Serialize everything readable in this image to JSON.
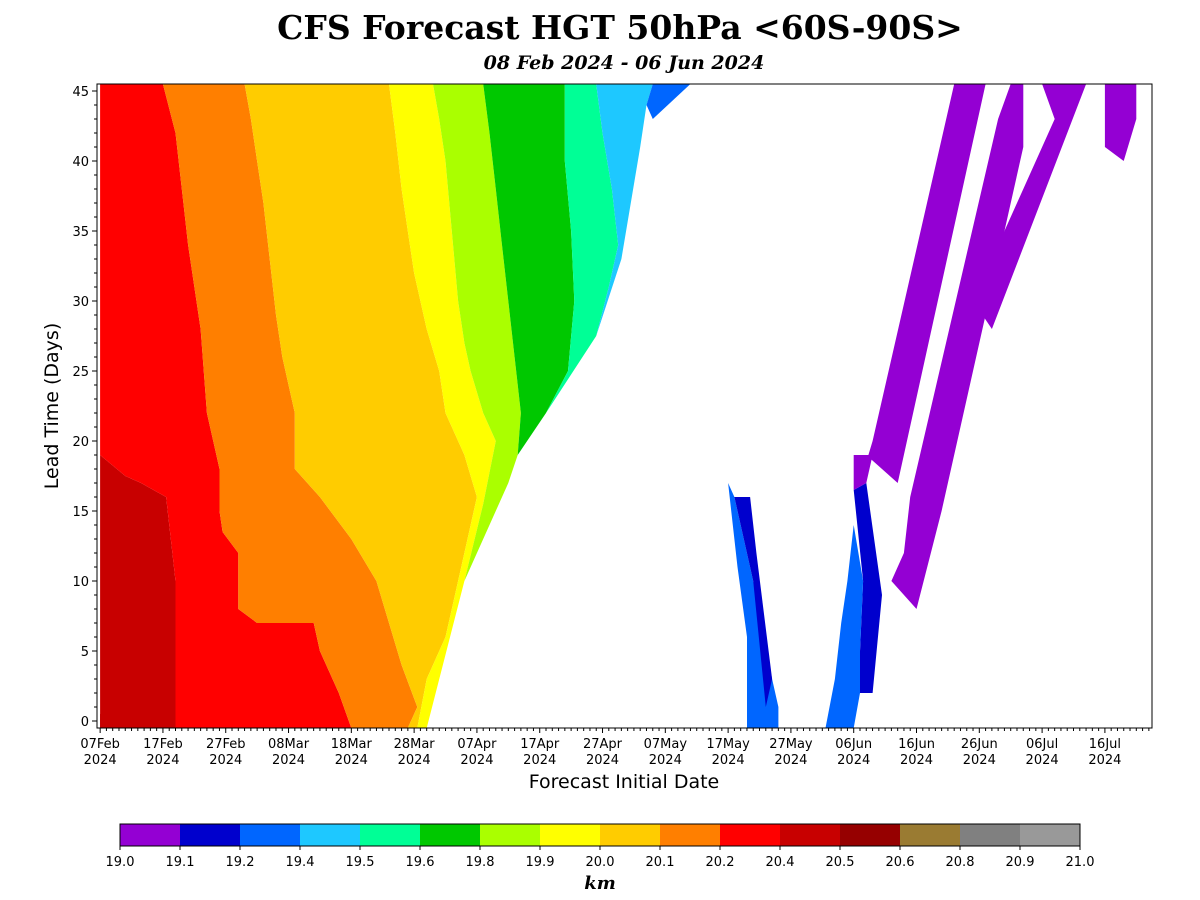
{
  "chart_data": {
    "type": "heatmap",
    "title": "CFS Forecast HGT 50hPa <60S-90S>",
    "subtitle": "08 Feb 2024 - 06 Jun 2024",
    "xlabel": "Forecast Initial Date",
    "ylabel": "Lead Time (Days)",
    "x_start": "2024-02-07",
    "x_end": "2024-07-24",
    "xlim": [
      -0.5,
      167.5
    ],
    "ylim": [
      -0.5,
      45.5
    ],
    "x_ticks": [
      {
        "day": 0,
        "label": "07Feb",
        "year": "2024"
      },
      {
        "day": 10,
        "label": "17Feb",
        "year": "2024"
      },
      {
        "day": 20,
        "label": "27Feb",
        "year": "2024"
      },
      {
        "day": 30,
        "label": "08Mar",
        "year": "2024"
      },
      {
        "day": 40,
        "label": "18Mar",
        "year": "2024"
      },
      {
        "day": 50,
        "label": "28Mar",
        "year": "2024"
      },
      {
        "day": 60,
        "label": "07Apr",
        "year": "2024"
      },
      {
        "day": 70,
        "label": "17Apr",
        "year": "2024"
      },
      {
        "day": 80,
        "label": "27Apr",
        "year": "2024"
      },
      {
        "day": 90,
        "label": "07May",
        "year": "2024"
      },
      {
        "day": 100,
        "label": "17May",
        "year": "2024"
      },
      {
        "day": 110,
        "label": "27May",
        "year": "2024"
      },
      {
        "day": 120,
        "label": "06Jun",
        "year": "2024"
      },
      {
        "day": 130,
        "label": "16Jun",
        "year": "2024"
      },
      {
        "day": 140,
        "label": "26Jun",
        "year": "2024"
      },
      {
        "day": 150,
        "label": "06Jul",
        "year": "2024"
      },
      {
        "day": 160,
        "label": "16Jul",
        "year": "2024"
      }
    ],
    "y_ticks": [
      0,
      5,
      10,
      15,
      20,
      25,
      30,
      35,
      40,
      45
    ],
    "colorbar": {
      "unit": "km",
      "tick_labels": [
        "19.0",
        "19.1",
        "19.2",
        "19.4",
        "19.5",
        "19.6",
        "19.8",
        "19.9",
        "20.0",
        "20.1",
        "20.2",
        "20.4",
        "20.5",
        "20.6",
        "20.8",
        "20.9",
        "21.0"
      ],
      "colors": [
        "#9400d3",
        "#0000cd",
        "#0066ff",
        "#1ec8ff",
        "#00ff96",
        "#00c800",
        "#aaff00",
        "#ffff00",
        "#ffcc00",
        "#ff7f00",
        "#ff0000",
        "#c80000",
        "#960000",
        "#9a7b32",
        "#808080",
        "#999999"
      ]
    },
    "regions": [
      {
        "value": 20.55,
        "poly": [
          [
            0,
            -0.5
          ],
          [
            3,
            -0.5
          ],
          [
            3,
            0.5
          ],
          [
            0,
            0.5
          ]
        ]
      },
      {
        "value": 20.45,
        "poly": [
          [
            0,
            -0.5
          ],
          [
            12,
            -0.5
          ],
          [
            12,
            10
          ],
          [
            10.5,
            16
          ],
          [
            6.5,
            17
          ],
          [
            4,
            17.5
          ],
          [
            0,
            19
          ]
        ]
      },
      {
        "value": 20.3,
        "poly": [
          [
            0,
            19
          ],
          [
            4,
            17.5
          ],
          [
            6.5,
            17
          ],
          [
            10.5,
            16
          ],
          [
            12,
            10
          ],
          [
            12,
            -0.5
          ],
          [
            40,
            -0.5
          ],
          [
            38,
            2
          ],
          [
            36,
            4
          ],
          [
            35,
            5
          ],
          [
            34,
            7
          ],
          [
            31,
            7
          ],
          [
            25,
            7
          ],
          [
            22,
            8
          ],
          [
            22,
            12
          ],
          [
            19.5,
            13.5
          ],
          [
            19,
            15
          ],
          [
            19,
            18
          ],
          [
            17,
            22
          ],
          [
            16,
            28
          ],
          [
            14,
            34
          ],
          [
            12,
            42
          ],
          [
            10,
            45.5
          ],
          [
            0,
            45.5
          ]
        ]
      },
      {
        "value": 20.15,
        "poly": [
          [
            40,
            -0.5
          ],
          [
            49,
            -0.5
          ],
          [
            50.5,
            1
          ],
          [
            48,
            4
          ],
          [
            46,
            7
          ],
          [
            44,
            10
          ],
          [
            40,
            13
          ],
          [
            35,
            16
          ],
          [
            31,
            18
          ],
          [
            31,
            22
          ],
          [
            29,
            26
          ],
          [
            28,
            29
          ],
          [
            27,
            33
          ],
          [
            26,
            37
          ],
          [
            25,
            40
          ],
          [
            24,
            43
          ],
          [
            23,
            45.5
          ],
          [
            10,
            45.5
          ],
          [
            12,
            42
          ],
          [
            14,
            34
          ],
          [
            16,
            28
          ],
          [
            17,
            22
          ],
          [
            19,
            18
          ],
          [
            19,
            15
          ],
          [
            19.5,
            13.5
          ],
          [
            22,
            12
          ],
          [
            22,
            8
          ],
          [
            25,
            7
          ],
          [
            31,
            7
          ],
          [
            34,
            7
          ],
          [
            35,
            5
          ],
          [
            36,
            4
          ],
          [
            38,
            2
          ]
        ]
      },
      {
        "value": 20.05,
        "poly": [
          [
            49,
            -0.5
          ],
          [
            50.5,
            -0.5
          ],
          [
            52,
            3
          ],
          [
            55,
            6
          ],
          [
            57,
            10
          ],
          [
            58.5,
            13
          ],
          [
            60,
            16
          ],
          [
            58,
            19
          ],
          [
            55,
            22
          ],
          [
            54,
            25
          ],
          [
            52,
            28
          ],
          [
            50,
            32
          ],
          [
            49,
            35
          ],
          [
            48,
            38
          ],
          [
            47,
            42
          ],
          [
            46,
            45.5
          ],
          [
            23,
            45.5
          ],
          [
            24,
            43
          ],
          [
            25,
            40
          ],
          [
            26,
            37
          ],
          [
            27,
            33
          ],
          [
            28,
            29
          ],
          [
            29,
            26
          ],
          [
            31,
            22
          ],
          [
            31,
            18
          ],
          [
            35,
            16
          ],
          [
            40,
            13
          ],
          [
            44,
            10
          ],
          [
            46,
            7
          ],
          [
            48,
            4
          ],
          [
            50.5,
            1
          ]
        ]
      },
      {
        "value": 19.95,
        "poly": [
          [
            50.5,
            -0.5
          ],
          [
            52,
            -0.5
          ],
          [
            58,
            10
          ],
          [
            61,
            15.5
          ],
          [
            63,
            20
          ],
          [
            61,
            22
          ],
          [
            59,
            25
          ],
          [
            58,
            27
          ],
          [
            57,
            30
          ],
          [
            56,
            35
          ],
          [
            55,
            40
          ],
          [
            54,
            43
          ],
          [
            53,
            45.5
          ],
          [
            46,
            45.5
          ],
          [
            47,
            42
          ],
          [
            48,
            38
          ],
          [
            49,
            35
          ],
          [
            50,
            32
          ],
          [
            52,
            28
          ],
          [
            54,
            25
          ],
          [
            55,
            22
          ],
          [
            58,
            19
          ],
          [
            60,
            16
          ],
          [
            58.5,
            13
          ],
          [
            57,
            10
          ],
          [
            55,
            6
          ],
          [
            52,
            3
          ]
        ]
      },
      {
        "value": 19.85,
        "poly": [
          [
            58,
            10
          ],
          [
            61,
            15.5
          ],
          [
            63,
            20
          ],
          [
            61,
            22
          ],
          [
            59,
            25
          ],
          [
            58,
            27
          ],
          [
            57,
            30
          ],
          [
            56,
            35
          ],
          [
            55,
            40
          ],
          [
            54,
            43
          ],
          [
            53,
            45.5
          ],
          [
            61,
            45.5
          ],
          [
            62,
            42
          ],
          [
            63,
            38
          ],
          [
            64,
            34
          ],
          [
            65,
            30
          ],
          [
            66,
            26
          ],
          [
            67,
            22
          ],
          [
            66.5,
            19
          ],
          [
            65,
            17
          ]
        ]
      },
      {
        "value": 19.7,
        "poly": [
          [
            66.5,
            19
          ],
          [
            67,
            22
          ],
          [
            66,
            26
          ],
          [
            65,
            30
          ],
          [
            64,
            34
          ],
          [
            63,
            38
          ],
          [
            62,
            42
          ],
          [
            61,
            45.5
          ],
          [
            74,
            45.5
          ],
          [
            74,
            40
          ],
          [
            75,
            35
          ],
          [
            75.5,
            30
          ],
          [
            74.5,
            25
          ],
          [
            71,
            22
          ]
        ]
      },
      {
        "value": 19.55,
        "poly": [
          [
            71,
            22
          ],
          [
            74.5,
            25
          ],
          [
            75.5,
            30
          ],
          [
            75,
            35
          ],
          [
            74,
            40
          ],
          [
            74,
            45.5
          ],
          [
            79,
            45.5
          ],
          [
            80,
            42
          ],
          [
            81.5,
            38
          ],
          [
            82.5,
            34
          ],
          [
            81,
            31
          ],
          [
            79,
            27.5
          ]
        ]
      },
      {
        "value": 19.45,
        "poly": [
          [
            79,
            27.5
          ],
          [
            81,
            31
          ],
          [
            82.5,
            34
          ],
          [
            81.5,
            38
          ],
          [
            80,
            42
          ],
          [
            79,
            45.5
          ],
          [
            88,
            45.5
          ],
          [
            87,
            44
          ],
          [
            86,
            41
          ],
          [
            84.5,
            37
          ],
          [
            83,
            33
          ]
        ]
      },
      {
        "value": 19.25,
        "poly": [
          [
            87,
            44
          ],
          [
            88,
            45.5
          ],
          [
            94,
            45.5
          ],
          [
            88,
            43
          ]
        ]
      },
      {
        "value": 19.25,
        "poly": [
          [
            103,
            -0.5
          ],
          [
            108,
            -0.5
          ],
          [
            108,
            1
          ],
          [
            107,
            3
          ],
          [
            104,
            10
          ],
          [
            101,
            16
          ],
          [
            100,
            17
          ],
          [
            101.5,
            11
          ],
          [
            103,
            6
          ],
          [
            103,
            3
          ]
        ]
      },
      {
        "value": 19.15,
        "poly": [
          [
            106,
            1
          ],
          [
            107,
            3
          ],
          [
            104.5,
            12
          ],
          [
            103.5,
            16
          ],
          [
            101,
            16
          ],
          [
            104,
            10
          ]
        ]
      },
      {
        "value": 19.15,
        "poly": [
          [
            121,
            2
          ],
          [
            123,
            2
          ],
          [
            124.5,
            9
          ],
          [
            122,
            17
          ],
          [
            120,
            16.5
          ],
          [
            121.5,
            10
          ],
          [
            121,
            5
          ]
        ]
      },
      {
        "value": 19.25,
        "poly": [
          [
            115.5,
            -0.5
          ],
          [
            120,
            -0.5
          ],
          [
            121,
            2
          ],
          [
            121,
            5
          ],
          [
            121.5,
            10
          ],
          [
            120,
            14
          ],
          [
            119,
            10
          ],
          [
            118,
            7
          ],
          [
            117,
            3
          ]
        ]
      },
      {
        "value": 19.05,
        "poly": [
          [
            120,
            16.5
          ],
          [
            122,
            17
          ],
          [
            123,
            19
          ],
          [
            120,
            19
          ]
        ]
      },
      {
        "value": 19.05,
        "poly": [
          [
            121,
            17
          ],
          [
            122,
            19
          ],
          [
            127,
            17
          ],
          [
            141,
            45.5
          ],
          [
            136,
            45.5
          ],
          [
            123,
            20
          ]
        ]
      },
      {
        "value": 19.05,
        "poly": [
          [
            126,
            10
          ],
          [
            128,
            12
          ],
          [
            129,
            16
          ],
          [
            143,
            43
          ],
          [
            145,
            45.5
          ],
          [
            147,
            45.5
          ],
          [
            147,
            41
          ],
          [
            134,
            15
          ],
          [
            130,
            8
          ]
        ]
      },
      {
        "value": 19.05,
        "poly": [
          [
            139,
            30
          ],
          [
            142,
            28
          ],
          [
            157,
            45.5
          ],
          [
            150,
            45.5
          ],
          [
            152,
            43
          ]
        ]
      },
      {
        "value": 19.05,
        "poly": [
          [
            160,
            45.5
          ],
          [
            165,
            45.5
          ],
          [
            165,
            43
          ],
          [
            163,
            40
          ],
          [
            160,
            41
          ]
        ]
      }
    ]
  }
}
